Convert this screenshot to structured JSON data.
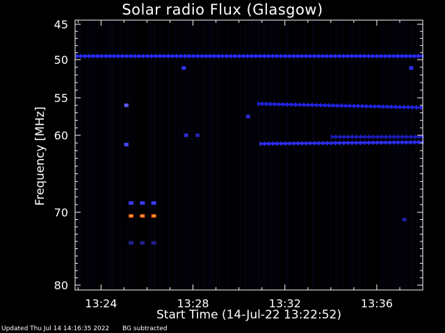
{
  "chart_data": {
    "type": "heatmap",
    "title": "Solar radio Flux (Glasgow)",
    "xlabel": "Start Time (14-Jul-22 13:22:52)",
    "ylabel": "Frequency [MHz]",
    "footer_updated": "Updated Thu Jul 14 14:16:35 2022",
    "footer_bg": "BG subtracted",
    "x_range_min": [
      22.87,
      38.0
    ],
    "x_ticks": [
      {
        "min": 24,
        "label": "13:24"
      },
      {
        "min": 28,
        "label": "13:28"
      },
      {
        "min": 32,
        "label": "13:32"
      },
      {
        "min": 36,
        "label": "13:36"
      }
    ],
    "y_axis": "log-like (decreasing downward)",
    "y_ticks": [
      {
        "mhz": 45,
        "label": "45"
      },
      {
        "mhz": 50,
        "label": "50"
      },
      {
        "mhz": 55,
        "label": "55"
      },
      {
        "mhz": 60,
        "label": "60"
      },
      {
        "mhz": 70,
        "label": "70"
      },
      {
        "mhz": 80,
        "label": "80"
      }
    ],
    "features": [
      {
        "type": "band",
        "mhz_start": 49.5,
        "mhz_end": 49.5,
        "t_start": 22.9,
        "t_end": 38.0,
        "color": "#2a2aff"
      },
      {
        "type": "band",
        "mhz_start": 55.8,
        "mhz_end": 56.3,
        "t_start": 30.8,
        "t_end": 38.0,
        "color": "#2323e0"
      },
      {
        "type": "band",
        "mhz_start": 61.1,
        "mhz_end": 60.9,
        "t_start": 30.9,
        "t_end": 38.0,
        "color": "#2f2ff5"
      },
      {
        "type": "band",
        "mhz_start": 60.2,
        "mhz_end": 60.2,
        "t_start": 34.0,
        "t_end": 38.0,
        "color": "#1c1cb8"
      },
      {
        "type": "dashes",
        "mhz": 70.5,
        "t_start": 25.2,
        "t_end": 26.4,
        "color": "#ff5a1a"
      },
      {
        "type": "dashes",
        "mhz": 68.8,
        "t_start": 25.2,
        "t_end": 26.4,
        "color": "#3a3aff"
      },
      {
        "type": "dashes",
        "mhz": 74.2,
        "t_start": 25.2,
        "t_end": 26.4,
        "color": "#202090"
      },
      {
        "type": "spot",
        "mhz": 56.0,
        "t": 25.1,
        "color": "#5a5aff"
      },
      {
        "type": "spot",
        "mhz": 61.2,
        "t": 25.1,
        "color": "#4646ff"
      },
      {
        "type": "spot",
        "mhz": 51.1,
        "t": 27.6,
        "color": "#3232ff"
      },
      {
        "type": "spot",
        "mhz": 60.0,
        "t": 27.7,
        "color": "#2a2ad0"
      },
      {
        "type": "spot",
        "mhz": 60.0,
        "t": 28.2,
        "color": "#2424b0"
      },
      {
        "type": "spot",
        "mhz": 57.5,
        "t": 30.4,
        "color": "#2a2ad0"
      },
      {
        "type": "spot",
        "mhz": 51.1,
        "t": 37.5,
        "color": "#3030ff"
      },
      {
        "type": "spot",
        "mhz": 71.0,
        "t": 37.2,
        "color": "#1e1ea0"
      }
    ],
    "colors": {
      "background": "#000000",
      "noise": "#06061f",
      "axis": "#ffffff"
    }
  }
}
